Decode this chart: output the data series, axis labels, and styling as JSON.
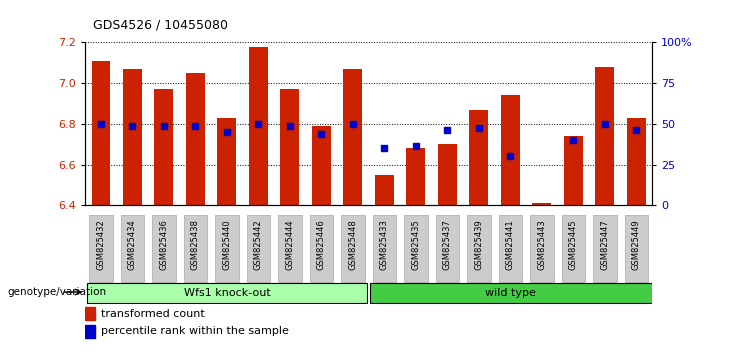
{
  "title": "GDS4526 / 10455080",
  "samples": [
    "GSM825432",
    "GSM825434",
    "GSM825436",
    "GSM825438",
    "GSM825440",
    "GSM825442",
    "GSM825444",
    "GSM825446",
    "GSM825448",
    "GSM825433",
    "GSM825435",
    "GSM825437",
    "GSM825439",
    "GSM825441",
    "GSM825443",
    "GSM825445",
    "GSM825447",
    "GSM825449"
  ],
  "bar_values": [
    7.11,
    7.07,
    6.97,
    7.05,
    6.83,
    7.18,
    6.97,
    6.79,
    7.07,
    6.55,
    6.68,
    6.7,
    6.87,
    6.94,
    6.41,
    6.74,
    7.08,
    6.83
  ],
  "dot_values": [
    6.8,
    6.79,
    6.79,
    6.79,
    6.76,
    6.8,
    6.79,
    6.75,
    6.8,
    6.68,
    6.69,
    6.77,
    6.78,
    6.64,
    null,
    6.72,
    6.8,
    6.77
  ],
  "ylim_left": [
    6.4,
    7.2
  ],
  "ylim_right": [
    0,
    100
  ],
  "yticks_left": [
    6.4,
    6.6,
    6.8,
    7.0,
    7.2
  ],
  "yticks_right": [
    0,
    25,
    50,
    75,
    100
  ],
  "ytick_labels_right": [
    "0",
    "25",
    "50",
    "75",
    "100%"
  ],
  "bar_color": "#cc2200",
  "dot_color": "#0000cc",
  "group1_label": "Wfs1 knock-out",
  "group2_label": "wild type",
  "group1_color": "#aaffaa",
  "group2_color": "#44cc44",
  "group1_count": 9,
  "group2_count": 9,
  "legend_bar_label": "transformed count",
  "legend_dot_label": "percentile rank within the sample",
  "genotype_label": "genotype/variation",
  "plot_bg": "#ffffff",
  "tick_label_color_left": "#cc2200",
  "tick_label_color_right": "#0000cc",
  "title_color": "#000000",
  "grid_color": "#000000",
  "sample_box_color": "#cccccc",
  "sample_box_edge": "#999999"
}
